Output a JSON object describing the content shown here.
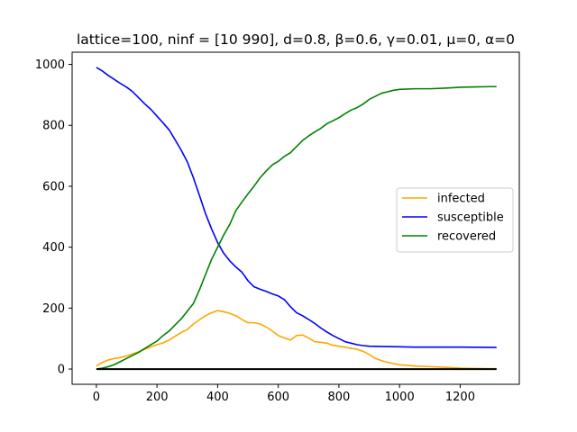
{
  "chart_data": {
    "type": "line",
    "title": "lattice=100, ninf = [10 990], d=0.8, β=0.6, γ=0.01, μ=0, α=0",
    "xlabel": "",
    "ylabel": "",
    "xlim": [
      -80,
      1395
    ],
    "ylim": [
      -50,
      1040
    ],
    "xticks": [
      0,
      200,
      400,
      600,
      800,
      1000,
      1200
    ],
    "yticks": [
      0,
      200,
      400,
      600,
      800,
      1000
    ],
    "grid": false,
    "legend_position": "center-right",
    "series": [
      {
        "name": "infected",
        "color": "#ffa500",
        "x": [
          0,
          20,
          40,
          60,
          80,
          100,
          120,
          140,
          160,
          180,
          200,
          220,
          240,
          260,
          280,
          300,
          320,
          340,
          360,
          380,
          400,
          420,
          440,
          460,
          480,
          500,
          520,
          540,
          560,
          580,
          600,
          620,
          640,
          660,
          680,
          700,
          720,
          740,
          760,
          780,
          800,
          820,
          840,
          860,
          880,
          900,
          920,
          940,
          960,
          980,
          1000,
          1050,
          1100,
          1150,
          1200,
          1250,
          1300,
          1320
        ],
        "y": [
          10,
          22,
          30,
          35,
          38,
          43,
          50,
          57,
          65,
          73,
          80,
          86,
          95,
          108,
          120,
          130,
          148,
          162,
          175,
          185,
          192,
          188,
          183,
          175,
          163,
          152,
          152,
          148,
          138,
          125,
          110,
          102,
          95,
          110,
          112,
          102,
          90,
          88,
          85,
          78,
          75,
          72,
          68,
          65,
          58,
          48,
          35,
          28,
          22,
          18,
          14,
          10,
          8,
          6,
          3,
          2,
          1,
          1
        ]
      },
      {
        "name": "susceptible",
        "color": "#0000ff",
        "x": [
          0,
          20,
          40,
          60,
          80,
          100,
          120,
          140,
          160,
          180,
          200,
          220,
          240,
          260,
          280,
          300,
          320,
          340,
          360,
          380,
          400,
          420,
          440,
          460,
          480,
          500,
          520,
          540,
          560,
          580,
          600,
          620,
          640,
          660,
          680,
          700,
          720,
          740,
          760,
          780,
          800,
          820,
          840,
          860,
          880,
          900,
          950,
          1000,
          1050,
          1100,
          1200,
          1320
        ],
        "y": [
          990,
          978,
          963,
          950,
          937,
          925,
          910,
          890,
          870,
          852,
          830,
          808,
          785,
          752,
          718,
          680,
          628,
          570,
          510,
          460,
          415,
          380,
          355,
          335,
          318,
          290,
          270,
          262,
          255,
          247,
          240,
          228,
          205,
          185,
          175,
          163,
          150,
          135,
          122,
          110,
          100,
          90,
          85,
          80,
          77,
          75,
          74,
          73,
          72,
          72,
          72,
          71
        ]
      },
      {
        "name": "recovered",
        "color": "#008000",
        "x": [
          0,
          20,
          40,
          60,
          80,
          100,
          120,
          140,
          160,
          180,
          200,
          220,
          240,
          260,
          280,
          300,
          320,
          340,
          360,
          380,
          400,
          420,
          440,
          460,
          480,
          500,
          520,
          540,
          560,
          580,
          600,
          620,
          640,
          660,
          680,
          700,
          720,
          740,
          760,
          780,
          800,
          820,
          840,
          860,
          880,
          900,
          920,
          940,
          960,
          980,
          1000,
          1050,
          1100,
          1150,
          1200,
          1250,
          1300,
          1320
        ],
        "y": [
          0,
          3,
          8,
          15,
          25,
          35,
          45,
          55,
          68,
          80,
          92,
          110,
          125,
          145,
          165,
          190,
          215,
          260,
          310,
          360,
          400,
          440,
          475,
          520,
          548,
          575,
          600,
          628,
          650,
          670,
          682,
          698,
          710,
          730,
          750,
          765,
          778,
          790,
          805,
          815,
          825,
          838,
          850,
          858,
          870,
          885,
          895,
          905,
          910,
          915,
          918,
          920,
          920,
          922,
          925,
          926,
          927,
          927
        ]
      },
      {
        "name": "",
        "color": "#000000",
        "x": [
          0,
          1320
        ],
        "y": [
          0,
          0
        ]
      }
    ]
  }
}
